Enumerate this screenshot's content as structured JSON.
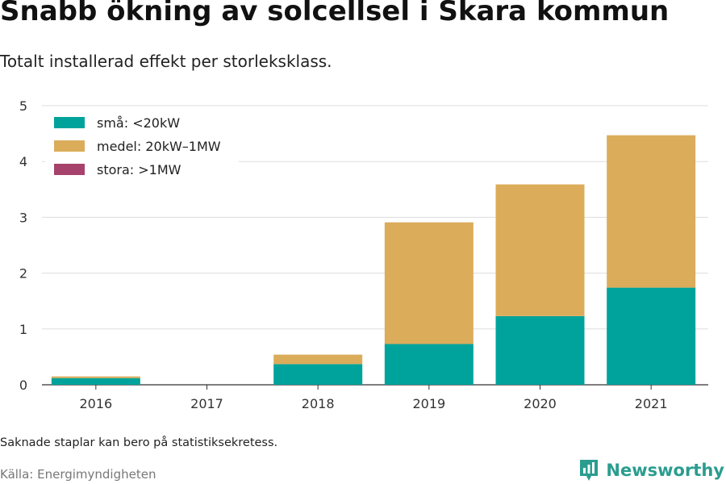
{
  "header": {
    "title": "Snabb ökning av solcellsel i Skara kommun",
    "subtitle": "Totalt installerad effekt per storleksklass."
  },
  "footer": {
    "note": "Saknade staplar kan bero på statistiksekretess.",
    "source": "Källa: Energimyndigheten",
    "brand": "Newsworthy",
    "brand_icon": "bar-chart-icon",
    "brand_color": "#2a9d8f"
  },
  "chart_data": {
    "type": "bar",
    "stacked": true,
    "categories": [
      "2016",
      "2017",
      "2018",
      "2019",
      "2020",
      "2021"
    ],
    "series": [
      {
        "name": "små: <20kW",
        "color": "#00a39b",
        "values": [
          0.12,
          0,
          0.37,
          0.73,
          1.23,
          1.74
        ]
      },
      {
        "name": "medel: 20kW–1MW",
        "color": "#dbac5a",
        "values": [
          0.03,
          0,
          0.17,
          2.18,
          2.36,
          2.73
        ]
      },
      {
        "name": "stora: >1MW",
        "color": "#a6426b",
        "values": [
          0,
          0,
          0,
          0,
          0,
          0
        ]
      }
    ],
    "title": "Snabb ökning av solcellsel i Skara kommun",
    "subtitle": "Totalt installerad effekt per storleksklass.",
    "xlabel": "",
    "ylabel": "",
    "ylim": [
      0,
      5
    ],
    "yticks": [
      0,
      1,
      2,
      3,
      4,
      5
    ],
    "grid": true,
    "legend_position": "top-left"
  }
}
